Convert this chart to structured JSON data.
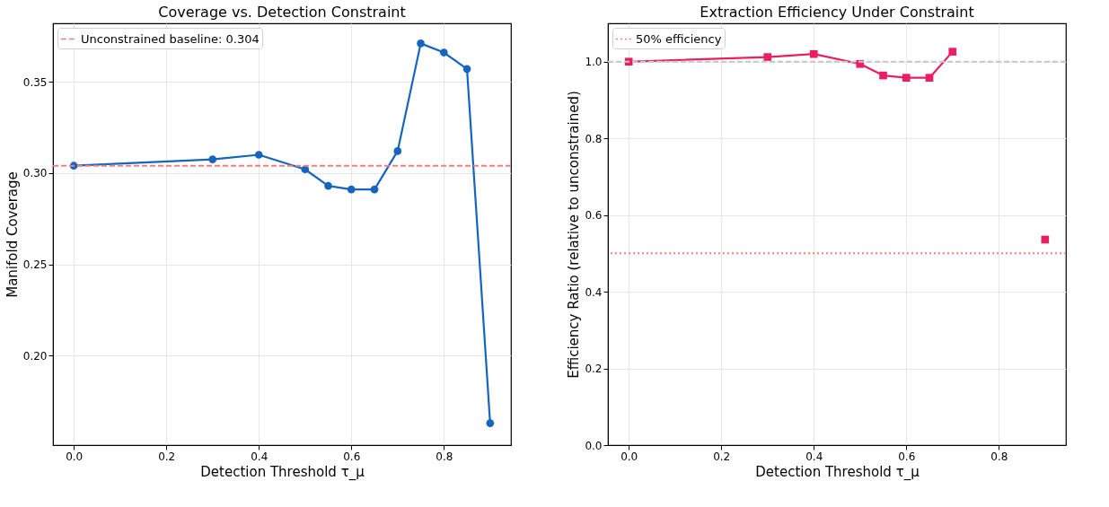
{
  "chart_data": [
    {
      "type": "line",
      "title": "Coverage vs. Detection Constraint",
      "xlabel": "Detection Threshold τ_μ",
      "ylabel": "Manifold Coverage",
      "x": [
        0.0,
        0.3,
        0.4,
        0.5,
        0.55,
        0.6,
        0.65,
        0.7,
        0.75,
        0.8,
        0.85,
        0.9
      ],
      "series": [
        {
          "color": "#1565c0",
          "values": [
            0.304,
            0.3075,
            0.31,
            0.302,
            0.293,
            0.291,
            0.291,
            0.312,
            0.371,
            0.366,
            0.357,
            0.163
          ]
        }
      ],
      "xlim": [
        -0.045,
        0.945
      ],
      "xticks": [
        {
          "value": 0,
          "label": "0.0"
        },
        {
          "value": 0.2,
          "label": "0.2"
        },
        {
          "value": 0.4,
          "label": "0.4"
        },
        {
          "value": 0.6,
          "label": "0.6"
        },
        {
          "value": 0.8,
          "label": "0.8"
        }
      ],
      "ylim": [
        0.151,
        0.382
      ],
      "yticks": [
        {
          "value": 0.2,
          "label": "0.20"
        },
        {
          "value": 0.25,
          "label": "0.25"
        },
        {
          "value": 0.3,
          "label": "0.30"
        },
        {
          "value": 0.35,
          "label": "0.35"
        }
      ],
      "ref_lines": [
        {
          "axis": "y",
          "value": 0.304,
          "label": "Unconstrained baseline: 0.304",
          "color": "#f08080",
          "line_style": "dashed"
        }
      ],
      "marker": "circle",
      "line_style": "solid",
      "grid": true,
      "legend": "top left"
    },
    {
      "type": "line",
      "title": "Extraction Efficiency Under Constraint",
      "xlabel": "Detection Threshold τ_μ",
      "ylabel": "Efficiency Ratio (relative to unconstrained)",
      "x": [
        0.0,
        0.3,
        0.4,
        0.5,
        0.55,
        0.6,
        0.65,
        0.7,
        0.75,
        0.8,
        0.85,
        0.9
      ],
      "series": [
        {
          "color": "#e91e63",
          "values": [
            1.0,
            1.012,
            1.02,
            0.994,
            0.964,
            0.958,
            0.958,
            1.026,
            null,
            null,
            null,
            0.536
          ]
        }
      ],
      "xlim": [
        -0.045,
        0.945
      ],
      "xticks": [
        {
          "value": 0,
          "label": "0.0"
        },
        {
          "value": 0.2,
          "label": "0.2"
        },
        {
          "value": 0.4,
          "label": "0.4"
        },
        {
          "value": 0.6,
          "label": "0.6"
        },
        {
          "value": 0.8,
          "label": "0.8"
        }
      ],
      "ylim": [
        0,
        1.1
      ],
      "yticks": [
        {
          "value": 0,
          "label": "0.0"
        },
        {
          "value": 0.2,
          "label": "0.2"
        },
        {
          "value": 0.4,
          "label": "0.4"
        },
        {
          "value": 0.6,
          "label": "0.6"
        },
        {
          "value": 0.8,
          "label": "0.8"
        },
        {
          "value": 1.0,
          "label": "1.0"
        }
      ],
      "ref_lines": [
        {
          "axis": "y",
          "value": 1.0,
          "label": null,
          "color": "#c8c8c8",
          "line_style": "dashed"
        },
        {
          "axis": "y",
          "value": 0.5,
          "label": "50% efficiency",
          "color": "#f08080",
          "line_style": "dotted"
        }
      ],
      "marker": "square",
      "line_style": "solid",
      "grid": true,
      "legend": "top left"
    }
  ]
}
